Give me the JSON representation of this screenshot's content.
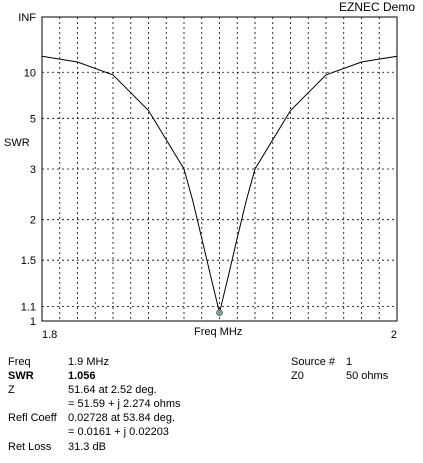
{
  "header": {
    "title": "EZNEC Demo"
  },
  "chart_data": {
    "type": "line",
    "title": "",
    "xlabel": "Freq MHz",
    "ylabel": "SWR",
    "xlim": [
      1.8,
      2.0
    ],
    "x_ticks": [
      "1.8",
      "2"
    ],
    "y_scale": "reflection-coefficient (SWR chart)",
    "y_ticks": [
      "1",
      "1.1",
      "1.5",
      "2",
      "3",
      "5",
      "10",
      "INF"
    ],
    "grid": true,
    "series": [
      {
        "x": [
          1.8,
          1.82,
          1.84,
          1.86,
          1.88,
          1.885,
          1.89,
          1.895,
          1.9,
          1.905,
          1.91,
          1.915,
          1.92,
          1.94,
          1.96,
          1.98,
          2.0
        ],
        "y": [
          14.5,
          12.5,
          9.5,
          5.5,
          3.0,
          2.3,
          1.75,
          1.35,
          1.056,
          1.35,
          1.75,
          2.3,
          3.0,
          5.5,
          9.5,
          12.5,
          14.5
        ]
      }
    ],
    "marker": {
      "x": 1.9,
      "y": 1.056,
      "color": "#7fa08c"
    }
  },
  "readout": {
    "freq_label": "Freq",
    "freq_value": "1.9 MHz",
    "swr_label": "SWR",
    "swr_value": "1.056",
    "z_label": "Z",
    "z_line1": "51.64 at 2.52 deg.",
    "z_line2": "= 51.59 + j 2.274 ohms",
    "refl_label": "Refl Coeff",
    "refl_line1": "0.02728 at 53.84 deg.",
    "refl_line2": "= 0.0161 + j 0.02203",
    "retloss_label": "Ret Loss",
    "retloss_value": "31.3 dB",
    "source_label": "Source #",
    "source_value": "1",
    "z0_label": "Z0",
    "z0_value": "50 ohms"
  },
  "colors": {
    "curve": "#000000",
    "grid": "#000000",
    "marker": "#7fa08c",
    "background": "#ffffff"
  }
}
